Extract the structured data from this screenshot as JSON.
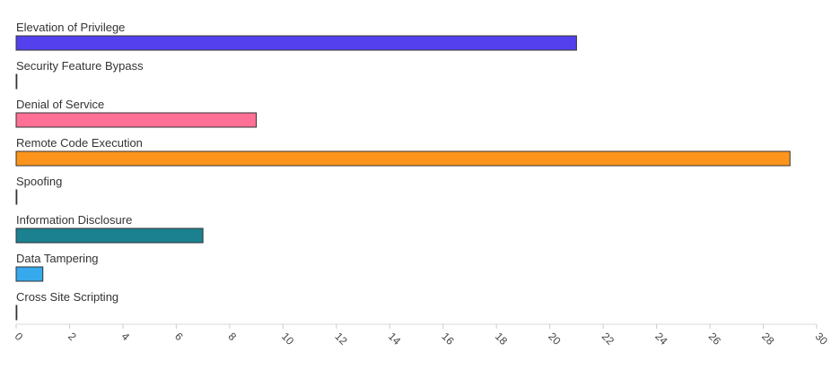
{
  "chart_data": {
    "type": "bar",
    "orientation": "horizontal",
    "categories": [
      "Elevation of Privilege",
      "Security Feature Bypass",
      "Denial of Service",
      "Remote Code Execution",
      "Spoofing",
      "Information Disclosure",
      "Data Tampering",
      "Cross Site Scripting"
    ],
    "values": [
      21,
      0,
      9,
      29,
      0,
      7,
      1,
      0
    ],
    "colors": [
      "#5440ec",
      "#5b8ff9",
      "#ff7096",
      "#fd951c",
      "#5b8ff9",
      "#1b8190",
      "#36aaec",
      "#5b8ff9"
    ],
    "xlim": [
      0,
      30
    ],
    "xticks": [
      0,
      2,
      4,
      6,
      8,
      10,
      12,
      14,
      16,
      18,
      20,
      22,
      24,
      26,
      28,
      30
    ],
    "grid": false,
    "legend": "none",
    "title": "",
    "xlabel": "",
    "ylabel": ""
  }
}
